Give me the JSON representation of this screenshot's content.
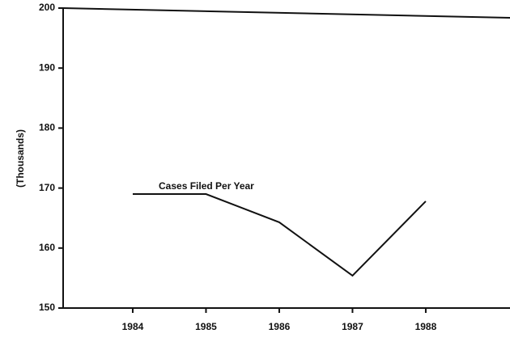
{
  "chart_data": {
    "type": "line",
    "annotation": "Cases Filed Per Year",
    "y_label": "(Thousands)",
    "x": [
      1984,
      1985,
      1986,
      1987,
      1988
    ],
    "series": [
      {
        "color": "#111111",
        "values": [
          169,
          169,
          164.3,
          155.4,
          167.8
        ]
      }
    ],
    "xlim": [
      1983.05,
      1989.15
    ],
    "xticks": [
      1984,
      1985,
      1986,
      1987,
      1988
    ],
    "ylim": [
      150,
      200
    ],
    "yticks": [
      150,
      160,
      170,
      180,
      190,
      200
    ],
    "grid": false
  }
}
